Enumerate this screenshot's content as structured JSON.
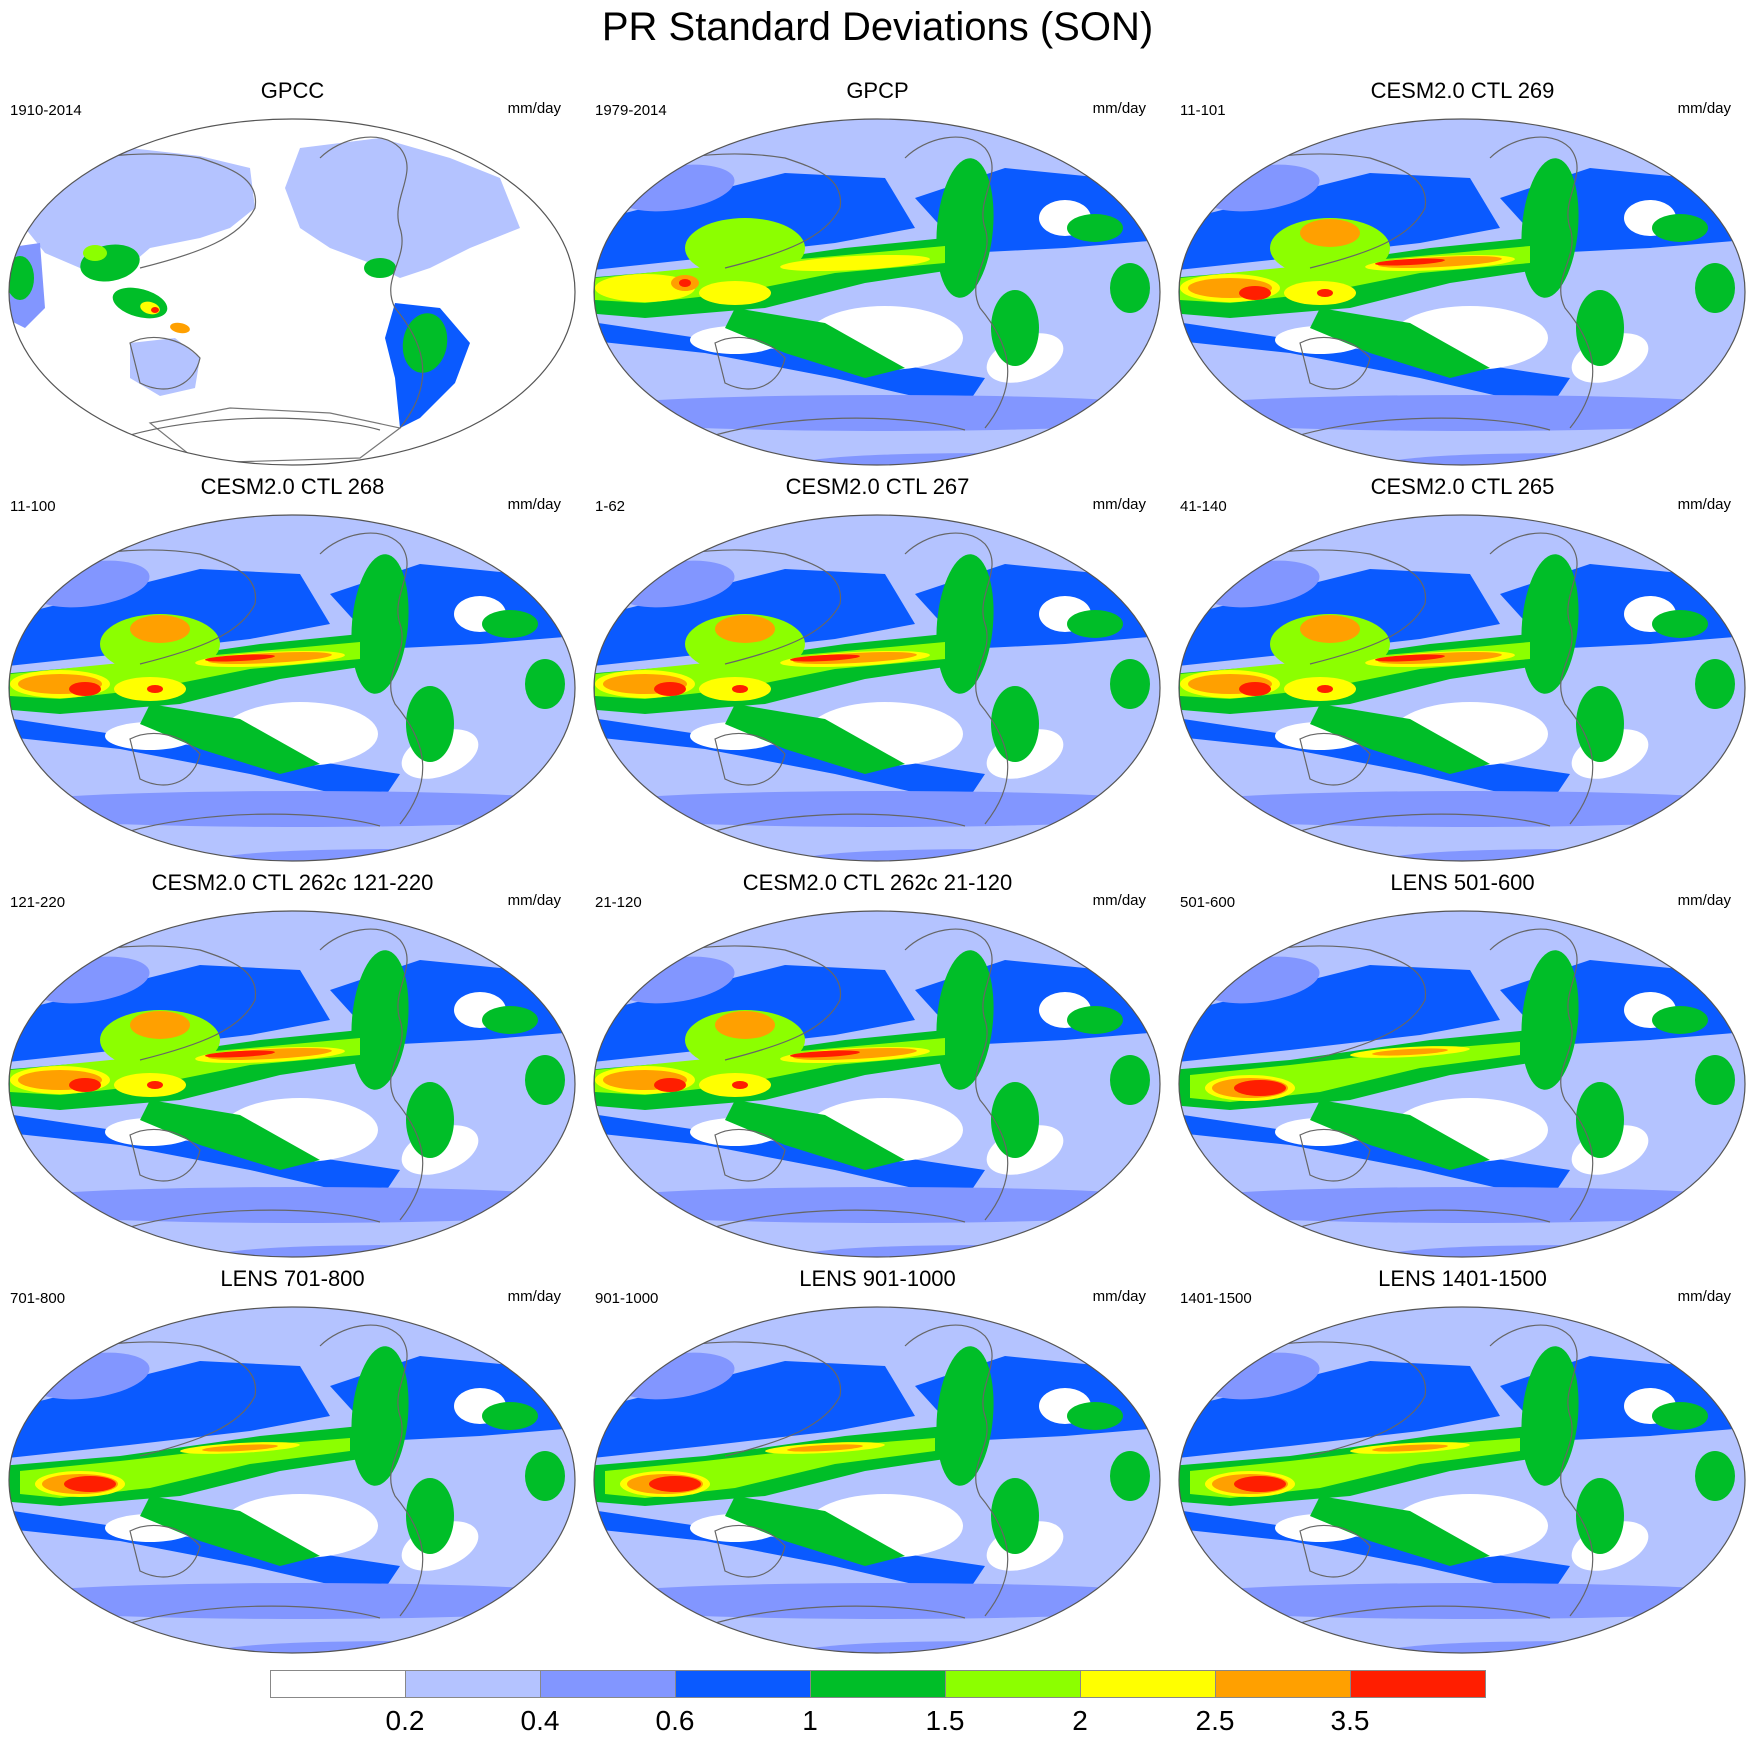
{
  "title": "PR Standard Deviations (SON)",
  "chart_data": {
    "type": "heatmap",
    "title": "PR Standard Deviations (SON)",
    "colorbar": {
      "levels": [
        "0.2",
        "0.4",
        "0.6",
        "1",
        "1.5",
        "2",
        "2.5",
        "3.5"
      ],
      "colors": [
        "#ffffff",
        "#b4c3ff",
        "#8296ff",
        "#0a5aff",
        "#00be28",
        "#8cff00",
        "#ffff00",
        "#ffa000",
        "#ff1e00"
      ]
    },
    "panels": [
      {
        "title": "GPCC",
        "period": "1910-2014",
        "units": "mm/day",
        "kind": "obs_land"
      },
      {
        "title": "GPCP",
        "period": "1979-2014",
        "units": "mm/day",
        "kind": "obs"
      },
      {
        "title": "CESM2.0 CTL 269",
        "period": "11-101",
        "units": "mm/day",
        "kind": "model"
      },
      {
        "title": "CESM2.0 CTL 268",
        "period": "11-100",
        "units": "mm/day",
        "kind": "model"
      },
      {
        "title": "CESM2.0 CTL 267",
        "period": "1-62",
        "units": "mm/day",
        "kind": "model"
      },
      {
        "title": "CESM2.0 CTL 265",
        "period": "41-140",
        "units": "mm/day",
        "kind": "model"
      },
      {
        "title": "CESM2.0 CTL 262c 121-220",
        "period": "121-220",
        "units": "mm/day",
        "kind": "model"
      },
      {
        "title": "CESM2.0 CTL 262c 21-120",
        "period": "21-120",
        "units": "mm/day",
        "kind": "model"
      },
      {
        "title": "LENS 501-600",
        "period": "501-600",
        "units": "mm/day",
        "kind": "lens"
      },
      {
        "title": "LENS 701-800",
        "period": "701-800",
        "units": "mm/day",
        "kind": "lens"
      },
      {
        "title": "LENS 901-1000",
        "period": "901-1000",
        "units": "mm/day",
        "kind": "lens"
      },
      {
        "title": "LENS 1401-1500",
        "period": "1401-1500",
        "units": "mm/day",
        "kind": "lens"
      }
    ]
  }
}
